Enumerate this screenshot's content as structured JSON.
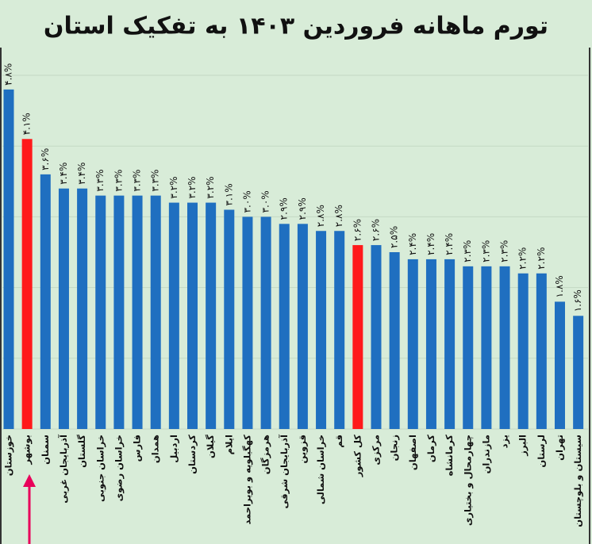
{
  "chart_data": {
    "type": "bar",
    "title": "تورم ماهانه فروردین ۱۴۰۳ به تفکیک استان",
    "categories": [
      "خوزستان",
      "بوشهر",
      "سمنان",
      "آذربایجان غربی",
      "گلستان",
      "خراسان جنوبی",
      "خراسان رضوی",
      "فارس",
      "همدان",
      "اردبیل",
      "کردستان",
      "گیلان",
      "ایلام",
      "کهگیلویه و بویراحمد",
      "هرمزگان",
      "آذربایجان شرقی",
      "قزوین",
      "خراسان شمالی",
      "قم",
      "کل کشور",
      "مرکزی",
      "زنجان",
      "اصفهان",
      "کرمان",
      "کرمانشاه",
      "چهارمحال و بختیاری",
      "مازندران",
      "یزد",
      "البرز",
      "لرستان",
      "تهران",
      "سیستان و بلوچستان"
    ],
    "values": [
      4.8,
      4.1,
      3.6,
      3.4,
      3.4,
      3.3,
      3.3,
      3.3,
      3.3,
      3.2,
      3.2,
      3.2,
      3.1,
      3.0,
      3.0,
      2.9,
      2.9,
      2.8,
      2.8,
      2.6,
      2.6,
      2.5,
      2.4,
      2.4,
      2.4,
      2.3,
      2.3,
      2.3,
      2.2,
      2.2,
      1.8,
      1.6
    ],
    "value_labels": [
      "۴.۸%",
      "۴.۱%",
      "۳.۶%",
      "۳.۴%",
      "۳.۴%",
      "۳.۳%",
      "۳.۳%",
      "۳.۳%",
      "۳.۳%",
      "۳.۲%",
      "۳.۲%",
      "۳.۲%",
      "۳.۱%",
      "۳.۰%",
      "۳.۰%",
      "۲.۹%",
      "۲.۹%",
      "۲.۸%",
      "۲.۸%",
      "۲.۶%",
      "۲.۶%",
      "۲.۵%",
      "۲.۴%",
      "۲.۴%",
      "۲.۴%",
      "۲.۳%",
      "۲.۳%",
      "۲.۳%",
      "۲.۲%",
      "۲.۲%",
      "۱.۸%",
      "۱.۶%"
    ],
    "colors": [
      "#1f6fc0",
      "#ff1a1a",
      "#1f6fc0",
      "#1f6fc0",
      "#1f6fc0",
      "#1f6fc0",
      "#1f6fc0",
      "#1f6fc0",
      "#1f6fc0",
      "#1f6fc0",
      "#1f6fc0",
      "#1f6fc0",
      "#1f6fc0",
      "#1f6fc0",
      "#1f6fc0",
      "#1f6fc0",
      "#1f6fc0",
      "#1f6fc0",
      "#1f6fc0",
      "#ff1a1a",
      "#1f6fc0",
      "#1f6fc0",
      "#1f6fc0",
      "#1f6fc0",
      "#1f6fc0",
      "#1f6fc0",
      "#1f6fc0",
      "#1f6fc0",
      "#1f6fc0",
      "#1f6fc0",
      "#1f6fc0",
      "#1f6fc0"
    ],
    "ylim": [
      0,
      5
    ],
    "yticks": [
      0,
      1,
      2,
      3,
      4,
      5
    ],
    "grid": true
  }
}
